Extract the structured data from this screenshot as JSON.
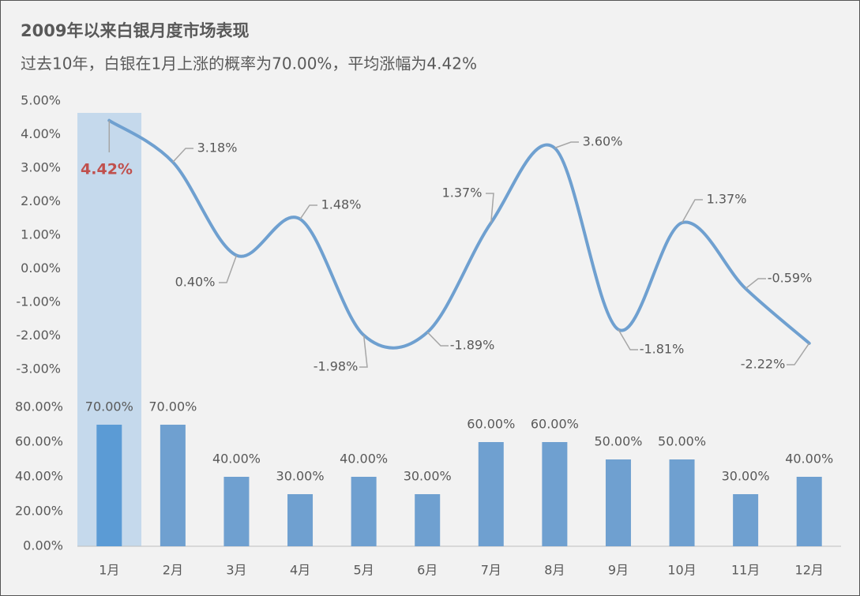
{
  "chart_data": [
    {
      "type": "line",
      "title": "2009年以来白银月度市场表现",
      "subtitle": "过去10年，白银在1月上涨的概率为70.00%，平均涨幅为4.42%",
      "values": [
        4.42,
        3.18,
        0.4,
        1.48,
        -1.98,
        -1.89,
        1.37,
        3.6,
        -1.81,
        1.37,
        -0.59,
        -2.22
      ],
      "value_labels": [
        "4.42%",
        "3.18%",
        "0.40%",
        "1.48%",
        "-1.98%",
        "-1.89%",
        "1.37%",
        "3.60%",
        "-1.81%",
        "1.37%",
        "-0.59%",
        "-2.22%"
      ],
      "color": "#6fa0d0",
      "ylim": [
        -3,
        5
      ],
      "yticks": [
        {
          "value": -3,
          "label": "-3.00%"
        },
        {
          "value": -2,
          "label": "-2.00%"
        },
        {
          "value": -1,
          "label": "-1.00%"
        },
        {
          "value": 0,
          "label": "0.00%"
        },
        {
          "value": 1,
          "label": "1.00%"
        },
        {
          "value": 2,
          "label": "2.00%"
        },
        {
          "value": 3,
          "label": "3.00%"
        },
        {
          "value": 4,
          "label": "4.00%"
        },
        {
          "value": 5,
          "label": "5.00%"
        }
      ]
    },
    {
      "type": "bar",
      "categories": [
        "1月",
        "2月",
        "3月",
        "4月",
        "5月",
        "6月",
        "7月",
        "8月",
        "9月",
        "10月",
        "11月",
        "12月"
      ],
      "values": [
        70,
        70,
        40,
        30,
        40,
        30,
        60,
        60,
        50,
        50,
        30,
        40
      ],
      "value_labels": [
        "70.00%",
        "70.00%",
        "40.00%",
        "30.00%",
        "40.00%",
        "30.00%",
        "60.00%",
        "60.00%",
        "50.00%",
        "50.00%",
        "30.00%",
        "40.00%"
      ],
      "colors": [
        "#5b9bd5",
        "#6fa0d0",
        "#6fa0d0",
        "#6fa0d0",
        "#6fa0d0",
        "#6fa0d0",
        "#6fa0d0",
        "#6fa0d0",
        "#6fa0d0",
        "#6fa0d0",
        "#6fa0d0",
        "#6fa0d0"
      ],
      "ylim": [
        0,
        80
      ],
      "yticks": [
        {
          "value": 0,
          "label": "0.00%"
        },
        {
          "value": 20,
          "label": "20.00%"
        },
        {
          "value": 40,
          "label": "40.00%"
        },
        {
          "value": 60,
          "label": "60.00%"
        },
        {
          "value": 80,
          "label": "80.00%"
        }
      ]
    }
  ]
}
